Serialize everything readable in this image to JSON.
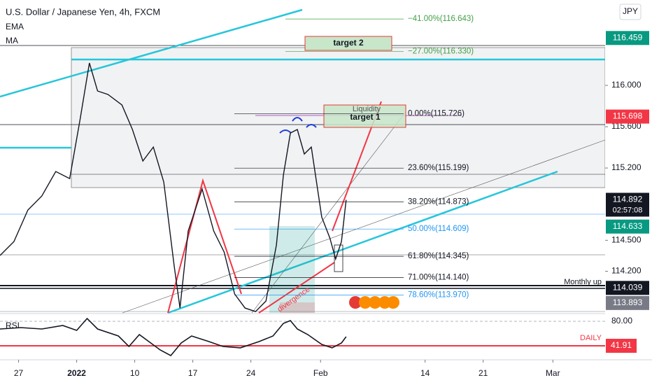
{
  "chart_data": [
    {
      "type": "line",
      "title": "U.S. Dollar / Japanese Yen, 4h, FXCM",
      "indicators": [
        "EMA",
        "MA"
      ],
      "currency": "JPY",
      "x": [
        -1.6,
        -0.4,
        0.8,
        2.0,
        3.2,
        4.4,
        5.3,
        6.1,
        6.8,
        7.7,
        8.9,
        9.8,
        10.7,
        11.6,
        12.5,
        13.4,
        13.9,
        14.6,
        15.8,
        16.8,
        17.7,
        18.6,
        19.5,
        20.4,
        21.3,
        22.2,
        22.8,
        23.4,
        24.0,
        24.6,
        25.2,
        26.1,
        26.8,
        27.3,
        27.8,
        28.2
      ],
      "values": [
        114.353,
        114.488,
        114.793,
        114.929,
        115.166,
        115.098,
        115.675,
        116.217,
        115.946,
        115.912,
        115.81,
        115.573,
        115.268,
        115.403,
        115.064,
        114.251,
        113.844,
        114.59,
        114.997,
        114.59,
        114.386,
        113.98,
        113.844,
        113.81,
        113.912,
        114.454,
        115.132,
        115.539,
        115.573,
        115.336,
        115.403,
        114.725,
        114.522,
        114.319,
        114.488,
        114.892
      ],
      "color": "#131722",
      "xlim": [
        -1.6,
        50.5
      ],
      "xticks": [
        {
          "value": 0,
          "label": "27"
        },
        {
          "value": 5,
          "label": "2022"
        },
        {
          "value": 10,
          "label": "10"
        },
        {
          "value": 15,
          "label": "17"
        },
        {
          "value": 20,
          "label": "24"
        },
        {
          "value": 26,
          "label": "Feb"
        },
        {
          "value": 35,
          "label": "14"
        },
        {
          "value": 40,
          "label": "21"
        },
        {
          "value": 46,
          "label": "Mar"
        }
      ],
      "ylim": [
        113.797,
        116.827
      ],
      "yticks": [
        {
          "value": 116,
          "label": "116.000"
        },
        {
          "value": 115.6,
          "label": "115.600"
        },
        {
          "value": 115.2,
          "label": "115.200"
        },
        {
          "value": 114.5,
          "label": "114.500"
        },
        {
          "value": 114.2,
          "label": "114.200"
        }
      ],
      "price_labels": [
        {
          "value": 116.459,
          "color": "#089981"
        },
        {
          "value": 115.698,
          "color": "#f23645"
        },
        {
          "value": 114.892,
          "color": "#131722"
        },
        {
          "value": 114.633,
          "color": "#089981"
        },
        {
          "value": 114.039,
          "color": "#131722"
        },
        {
          "value": 113.893,
          "color": "#787b86"
        }
      ],
      "countdown": "02:57:08",
      "fib_levels": [
        {
          "value": 116.643,
          "label": "−41.00%(116.643)",
          "color": "#43a047"
        },
        {
          "value": 116.33,
          "label": "−27.00%(116.330)",
          "color": "#43a047"
        },
        {
          "value": 115.726,
          "label": "0.00%(115.726)",
          "color": "#131722"
        },
        {
          "value": 115.199,
          "label": "23.60%(115.199)",
          "color": "#131722"
        },
        {
          "value": 114.873,
          "label": "38.20%(114.873)",
          "color": "#131722"
        },
        {
          "value": 114.609,
          "label": "50.00%(114.609)",
          "color": "#2196f3"
        },
        {
          "value": 114.345,
          "label": "61.80%(114.345)",
          "color": "#131722"
        },
        {
          "value": 114.14,
          "label": "71.00%(114.140)",
          "color": "#131722"
        },
        {
          "value": 113.97,
          "label": "78.60%(113.970)",
          "color": "#2196f3"
        }
      ],
      "annotations": [
        "target 2",
        "target 1",
        "Liquidity",
        "Monthly up",
        "divergence"
      ]
    },
    {
      "type": "line",
      "title": "RSI",
      "x": [
        -1.6,
        0.2,
        2.0,
        3.8,
        5.0,
        5.9,
        6.8,
        8.6,
        9.5,
        10.4,
        12.2,
        13.1,
        14.0,
        14.9,
        16.4,
        17.6,
        19.1,
        20.7,
        21.9,
        22.8,
        23.4,
        24.0,
        24.9,
        26.1,
        27.0,
        27.8,
        28.2
      ],
      "values": [
        68.0,
        70.2,
        68.0,
        73.5,
        65.9,
        84.4,
        68.0,
        57.1,
        40.8,
        59.3,
        35.4,
        26.7,
        46.3,
        57.1,
        48.4,
        40.8,
        38.7,
        48.4,
        57.1,
        76.7,
        81.1,
        68.0,
        59.3,
        44.1,
        38.7,
        46.3,
        56.1
      ],
      "color": "#131722",
      "ylim": [
        22.3,
        89.8
      ],
      "yticks": [
        {
          "value": 80,
          "label": "80.00"
        }
      ],
      "reference_line": {
        "value": 41.91,
        "label": "DAILY",
        "color": "#f23645"
      }
    }
  ]
}
